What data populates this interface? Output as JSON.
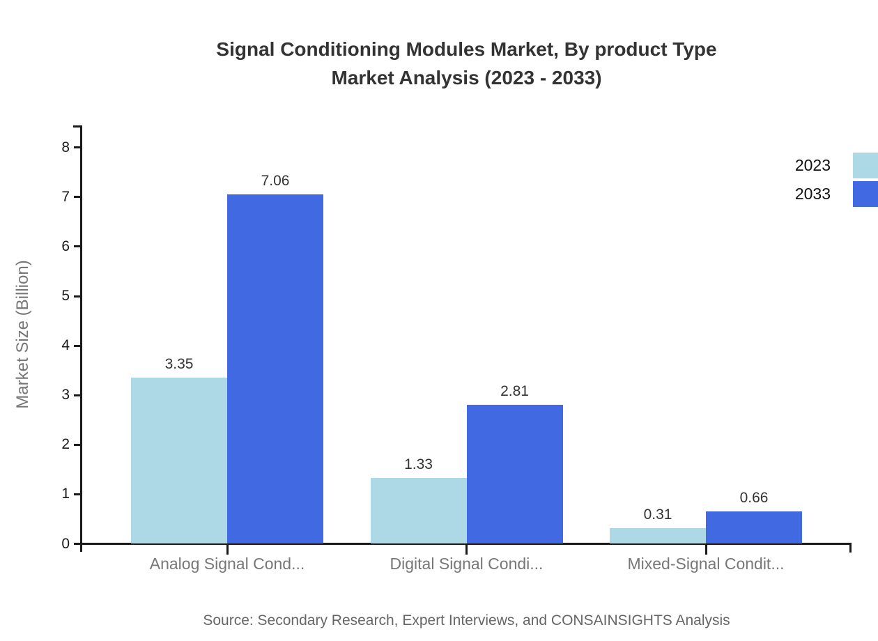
{
  "title": {
    "line1": "Signal Conditioning Modules Market, By product Type",
    "line2": "Market Analysis (2023 - 2033)"
  },
  "axes": {
    "y_label": "Market Size (Billion)"
  },
  "legend": {
    "items": [
      {
        "label": "2023",
        "color": "#add8e6"
      },
      {
        "label": "2033",
        "color": "#4169e1"
      }
    ]
  },
  "footer": {
    "source": "Source: Secondary Research, Expert Interviews, and CONSAINSIGHTS Analysis"
  },
  "colors": {
    "axis": "#1a1a1a",
    "series_2023": "#add8e6",
    "series_2033": "#4169e1",
    "category_label": "#777777",
    "value_label": "#333333",
    "title": "#333333",
    "source": "#666666"
  },
  "chart_data": {
    "type": "bar",
    "title": "Signal Conditioning Modules Market, By product Type Market Analysis (2023 - 2033)",
    "categories": [
      "Analog Signal Cond...",
      "Digital Signal Condi...",
      "Mixed-Signal Condit..."
    ],
    "series": [
      {
        "name": "2023",
        "color": "#add8e6",
        "values": [
          3.35,
          1.33,
          0.31
        ]
      },
      {
        "name": "2033",
        "color": "#4169e1",
        "values": [
          7.06,
          2.81,
          0.66
        ]
      }
    ],
    "xlabel": "",
    "ylabel": "Market Size (Billion)",
    "ylim": [
      0,
      8.45
    ],
    "yticks": [
      0,
      1,
      2,
      3,
      4,
      5,
      6,
      7,
      8
    ],
    "grid": false,
    "legend_position": "top-right",
    "value_labels": true
  }
}
